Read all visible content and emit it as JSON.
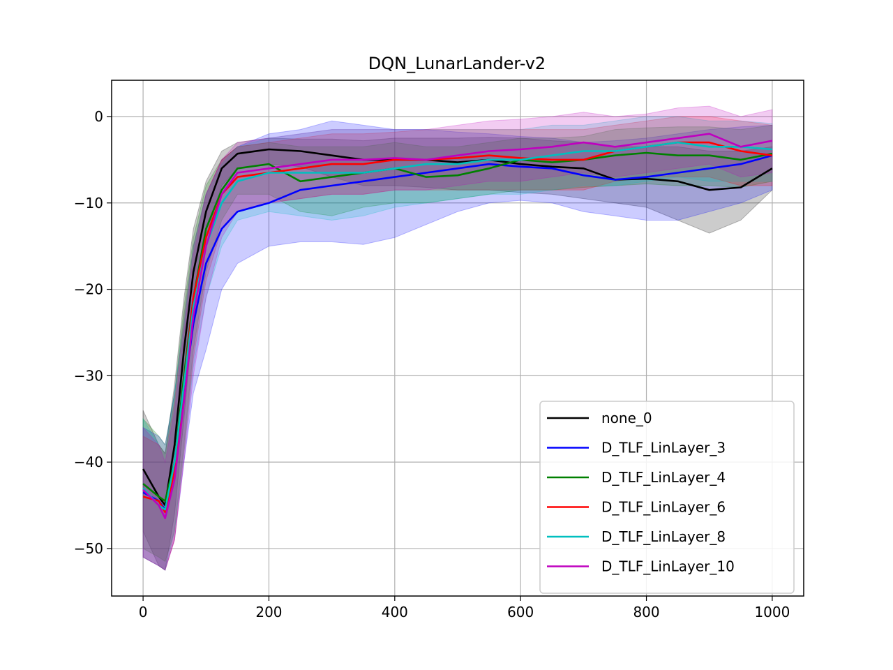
{
  "chart_data": {
    "type": "line",
    "title": "DQN_LunarLander-v2",
    "xlabel": "",
    "ylabel": "",
    "xlim": [
      -50,
      1050
    ],
    "ylim": [
      -55.5,
      4.2
    ],
    "xticks": [
      0,
      200,
      400,
      600,
      800,
      1000
    ],
    "yticks": [
      0,
      -10,
      -20,
      -30,
      -40,
      -50
    ],
    "grid": true,
    "legend_position": "lower-right",
    "x": [
      0,
      25,
      35,
      50,
      65,
      80,
      100,
      125,
      150,
      200,
      250,
      300,
      350,
      400,
      450,
      500,
      550,
      600,
      650,
      700,
      750,
      800,
      850,
      900,
      950,
      1000
    ],
    "series": [
      {
        "name": "none_0",
        "color": "#000000",
        "values": [
          -40.8,
          -44,
          -45,
          -38,
          -27,
          -18,
          -11,
          -6,
          -4.3,
          -3.8,
          -4,
          -4.5,
          -5,
          -5,
          -5,
          -5.3,
          -5,
          -5.5,
          -5.8,
          -6,
          -7.3,
          -7.2,
          -7.5,
          -8.5,
          -8.2,
          -6
        ],
        "lower": [
          -48,
          -52,
          -52.5,
          -46,
          -35,
          -23,
          -14,
          -8,
          -6,
          -5.5,
          -5.8,
          -7,
          -8,
          -8,
          -8.2,
          -8.5,
          -8.5,
          -8.8,
          -9,
          -9.5,
          -10,
          -10.5,
          -12,
          -13.5,
          -12,
          -8.5
        ],
        "upper": [
          -34,
          -38,
          -39,
          -31,
          -21,
          -13,
          -7.5,
          -4,
          -3,
          -2.5,
          -2.6,
          -2.6,
          -2.8,
          -2.5,
          -2.5,
          -2.5,
          -2.4,
          -2.5,
          -2.8,
          -3,
          -3.5,
          -3.5,
          -3.5,
          -4,
          -4,
          -3.5
        ]
      },
      {
        "name": "D_TLF_LinLayer_3",
        "color": "#0000ff",
        "values": [
          -43.5,
          -44.5,
          -45.5,
          -41,
          -32,
          -24,
          -17,
          -13,
          -11,
          -10,
          -8.5,
          -8,
          -7.5,
          -7,
          -6.5,
          -6,
          -5.5,
          -5.8,
          -6,
          -6.8,
          -7.3,
          -7,
          -6.5,
          -6,
          -5.5,
          -4.5
        ],
        "lower": [
          -51,
          -52,
          -52.5,
          -49,
          -40,
          -32,
          -27,
          -20,
          -17,
          -15,
          -14.5,
          -14.5,
          -14.8,
          -14,
          -12.5,
          -11,
          -10,
          -9.7,
          -10,
          -11,
          -11.5,
          -12,
          -12,
          -11,
          -10,
          -8.5
        ],
        "upper": [
          -36,
          -37,
          -38,
          -32,
          -24,
          -15,
          -9,
          -5,
          -3.5,
          -2,
          -1.5,
          -0.5,
          -1,
          -1.5,
          -1.5,
          -1.8,
          -2,
          -2.3,
          -2.5,
          -3,
          -2.8,
          -2.5,
          -2,
          -1.5,
          -1.2,
          -1
        ]
      },
      {
        "name": "D_TLF_LinLayer_4",
        "color": "#008000",
        "values": [
          -42.5,
          -44,
          -44.5,
          -40,
          -30,
          -21,
          -13,
          -8.5,
          -6,
          -5.5,
          -7.5,
          -7,
          -6.5,
          -6,
          -7,
          -6.8,
          -6,
          -5,
          -5.3,
          -5,
          -4.5,
          -4.2,
          -4.5,
          -4.5,
          -5,
          -4.3
        ],
        "lower": [
          -50,
          -51,
          -51.5,
          -48,
          -38,
          -27,
          -18,
          -12,
          -9,
          -9,
          -11,
          -11.5,
          -10.5,
          -10,
          -10,
          -9.5,
          -9,
          -8.5,
          -8.5,
          -8.2,
          -8,
          -7.8,
          -8,
          -8,
          -8.2,
          -7.5
        ],
        "upper": [
          -35,
          -37,
          -38,
          -32,
          -22,
          -14,
          -8,
          -5,
          -3.5,
          -3,
          -3.5,
          -3.5,
          -3.5,
          -3,
          -3.5,
          -3.5,
          -3,
          -2.5,
          -2.5,
          -2.3,
          -1.5,
          -1.3,
          -1.2,
          -1.2,
          -1.5,
          -1
        ]
      },
      {
        "name": "D_TLF_LinLayer_6",
        "color": "#ff0000",
        "values": [
          -44,
          -44.5,
          -45.8,
          -41,
          -31,
          -21,
          -14,
          -9,
          -7,
          -6.5,
          -6,
          -5.5,
          -5.5,
          -5,
          -5,
          -4.8,
          -4.5,
          -4.8,
          -5,
          -5,
          -4,
          -3.5,
          -3,
          -3,
          -4,
          -4.5
        ],
        "lower": [
          -51,
          -52,
          -52.5,
          -49,
          -39,
          -28,
          -19,
          -13,
          -11,
          -10,
          -9.5,
          -9,
          -9,
          -8.5,
          -8.5,
          -8.5,
          -8.5,
          -8.5,
          -8.5,
          -8.5,
          -7.5,
          -7,
          -7,
          -7,
          -8,
          -8
        ],
        "upper": [
          -37,
          -38,
          -39,
          -33,
          -23,
          -15,
          -9,
          -5,
          -3.5,
          -3,
          -2.5,
          -2,
          -2,
          -1.8,
          -1.5,
          -1.5,
          -1.5,
          -1.5,
          -1.5,
          -1.5,
          -1,
          -0.5,
          0,
          0,
          -0.5,
          -1
        ]
      },
      {
        "name": "D_TLF_LinLayer_8",
        "color": "#00bfbf",
        "values": [
          -43,
          -45,
          -45.5,
          -40,
          -31,
          -22,
          -15,
          -10,
          -7.5,
          -6.5,
          -6.5,
          -6.5,
          -6.5,
          -6,
          -5.5,
          -5.5,
          -5,
          -5,
          -4.5,
          -4,
          -4,
          -3.5,
          -3,
          -3.5,
          -3.5,
          -3.8
        ],
        "lower": [
          -51,
          -52,
          -52.5,
          -48,
          -39,
          -29,
          -21,
          -15,
          -12,
          -11,
          -11.5,
          -12,
          -11.5,
          -10.5,
          -10,
          -9.5,
          -9,
          -9,
          -8.5,
          -8,
          -8,
          -7.5,
          -7,
          -7.5,
          -7.5,
          -7.5
        ],
        "upper": [
          -35,
          -38,
          -39,
          -32,
          -23,
          -15,
          -9,
          -5.5,
          -3.5,
          -2.5,
          -2,
          -1.5,
          -1.5,
          -1.5,
          -1.5,
          -1.5,
          -1.5,
          -1.5,
          -1,
          -1,
          -0.5,
          0,
          0,
          -0.5,
          -0.5,
          -0.8
        ]
      },
      {
        "name": "D_TLF_LinLayer_10",
        "color": "#bf00bf",
        "values": [
          -43.2,
          -45,
          -46.5,
          -42,
          -33,
          -23,
          -15,
          -9,
          -6.5,
          -6,
          -5.5,
          -5,
          -5,
          -4.8,
          -5,
          -4.5,
          -4,
          -3.8,
          -3.5,
          -3,
          -3.5,
          -3,
          -2.5,
          -2,
          -3.5,
          -2.8
        ],
        "lower": [
          -51,
          -52,
          -52.5,
          -49,
          -40,
          -30,
          -21,
          -14,
          -11,
          -10,
          -9.5,
          -9,
          -9,
          -8.5,
          -8.5,
          -8,
          -7.5,
          -7.5,
          -7,
          -6.5,
          -7,
          -6.5,
          -6,
          -5.5,
          -7,
          -6.5
        ],
        "upper": [
          -36,
          -38,
          -40,
          -34,
          -25,
          -16,
          -9,
          -5,
          -3,
          -2.5,
          -2,
          -1.5,
          -1.5,
          -1.5,
          -1.5,
          -1,
          -0.5,
          -0.3,
          0,
          0.5,
          0,
          0.3,
          1,
          1.2,
          0,
          0.8
        ]
      }
    ]
  }
}
